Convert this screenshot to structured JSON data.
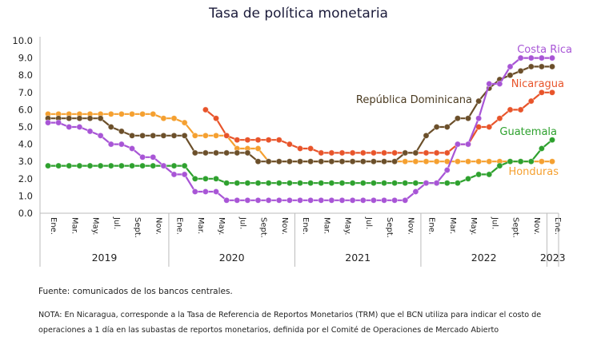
{
  "chart_data": {
    "type": "line",
    "title": "Tasa de política monetaria",
    "categories": [
      "Ene.",
      null,
      "Mar.",
      null,
      "May.",
      null,
      "Jul.",
      null,
      "Sept.",
      null,
      "Nov.",
      null,
      "Ene.",
      null,
      "Mar.",
      null,
      "May.",
      null,
      "Jul.",
      null,
      "Sept.",
      null,
      "Nov.",
      null,
      "Ene.",
      null,
      "Mar.",
      null,
      "May.",
      null,
      "Jul.",
      null,
      "Sept.",
      null,
      "Nov.",
      null,
      "Ene.",
      null,
      "Mar.",
      null,
      "May.",
      null,
      "Jul.",
      null,
      "Sept.",
      null,
      "Nov.",
      null,
      "Ene."
    ],
    "years": [
      "2019",
      "2020",
      "2021",
      "2022",
      "2023"
    ],
    "ylim": [
      0,
      10
    ],
    "yticks": [
      {
        "value": 0,
        "label": "0.0"
      },
      {
        "value": 1,
        "label": "1.0"
      },
      {
        "value": 2,
        "label": "2.0"
      },
      {
        "value": 3,
        "label": "3.0"
      },
      {
        "value": 4,
        "label": "4.0"
      },
      {
        "value": 5,
        "label": "5.0"
      },
      {
        "value": 6,
        "label": "6.0"
      },
      {
        "value": 7,
        "label": "7.0"
      },
      {
        "value": 8,
        "label": "8.0"
      },
      {
        "value": 9,
        "label": "9.0"
      },
      {
        "value": 10,
        "label": "10.0"
      }
    ],
    "series": [
      {
        "name": "Honduras",
        "color": "#f5a030",
        "values": [
          5.75,
          5.75,
          5.75,
          5.75,
          5.75,
          5.75,
          5.75,
          5.75,
          5.75,
          5.75,
          5.75,
          5.5,
          5.5,
          5.25,
          4.5,
          4.5,
          4.5,
          4.5,
          3.75,
          3.75,
          3.75,
          3.0,
          3.0,
          3.0,
          3.0,
          3.0,
          3.0,
          3.0,
          3.0,
          3.0,
          3.0,
          3.0,
          3.0,
          3.0,
          3.0,
          3.0,
          3.0,
          3.0,
          3.0,
          3.0,
          3.0,
          3.0,
          3.0,
          3.0,
          3.0,
          3.0,
          3.0,
          3.0,
          3.0
        ]
      },
      {
        "name": "Guatemala",
        "color": "#2ea12e",
        "values": [
          2.75,
          2.75,
          2.75,
          2.75,
          2.75,
          2.75,
          2.75,
          2.75,
          2.75,
          2.75,
          2.75,
          2.75,
          2.75,
          2.75,
          2.0,
          2.0,
          2.0,
          1.75,
          1.75,
          1.75,
          1.75,
          1.75,
          1.75,
          1.75,
          1.75,
          1.75,
          1.75,
          1.75,
          1.75,
          1.75,
          1.75,
          1.75,
          1.75,
          1.75,
          1.75,
          1.75,
          1.75,
          1.75,
          1.75,
          1.75,
          2.0,
          2.25,
          2.25,
          2.75,
          3.0,
          3.0,
          3.0,
          3.75,
          4.25
        ]
      },
      {
        "name": "Nicaragua",
        "color": "#e8542a",
        "values": [
          null,
          null,
          null,
          null,
          null,
          null,
          null,
          null,
          null,
          null,
          null,
          null,
          null,
          null,
          null,
          6.0,
          5.5,
          4.5,
          4.25,
          4.25,
          4.25,
          4.25,
          4.25,
          4.0,
          3.75,
          3.75,
          3.5,
          3.5,
          3.5,
          3.5,
          3.5,
          3.5,
          3.5,
          3.5,
          3.5,
          3.5,
          3.5,
          3.5,
          3.5,
          4.0,
          4.0,
          5.0,
          5.0,
          5.5,
          6.0,
          6.0,
          6.5,
          7.0,
          7.0
        ]
      },
      {
        "name": "República Dominicana",
        "color": "#6b4f2a",
        "values": [
          5.5,
          5.5,
          5.5,
          5.5,
          5.5,
          5.5,
          5.0,
          4.75,
          4.5,
          4.5,
          4.5,
          4.5,
          4.5,
          4.5,
          3.5,
          3.5,
          3.5,
          3.5,
          3.5,
          3.5,
          3.0,
          3.0,
          3.0,
          3.0,
          3.0,
          3.0,
          3.0,
          3.0,
          3.0,
          3.0,
          3.0,
          3.0,
          3.0,
          3.0,
          3.5,
          3.5,
          4.5,
          5.0,
          5.0,
          5.5,
          5.5,
          6.5,
          7.25,
          7.75,
          8.0,
          8.25,
          8.5,
          8.5,
          8.5
        ]
      },
      {
        "name": "Costa Rica",
        "color": "#a855d6",
        "values": [
          5.25,
          5.25,
          5.0,
          5.0,
          4.75,
          4.5,
          4.0,
          4.0,
          3.75,
          3.25,
          3.25,
          2.75,
          2.25,
          2.25,
          1.25,
          1.25,
          1.25,
          0.75,
          0.75,
          0.75,
          0.75,
          0.75,
          0.75,
          0.75,
          0.75,
          0.75,
          0.75,
          0.75,
          0.75,
          0.75,
          0.75,
          0.75,
          0.75,
          0.75,
          0.75,
          1.25,
          1.75,
          1.75,
          2.5,
          4.0,
          4.0,
          5.5,
          7.5,
          7.5,
          8.5,
          9.0,
          9.0,
          9.0,
          9.0
        ]
      }
    ],
    "source": "Fuente: comunicados de los bancos centrales.",
    "note": "NOTA: En Nicaragua, corresponde a la Tasa de Referencia de Reportos Monetarios (TRM) que el BCN utiliza para indicar el costo de operaciones a 1 día en las subastas de reportos monetarios, definida por el Comité de Operaciones de Mercado Abierto"
  }
}
